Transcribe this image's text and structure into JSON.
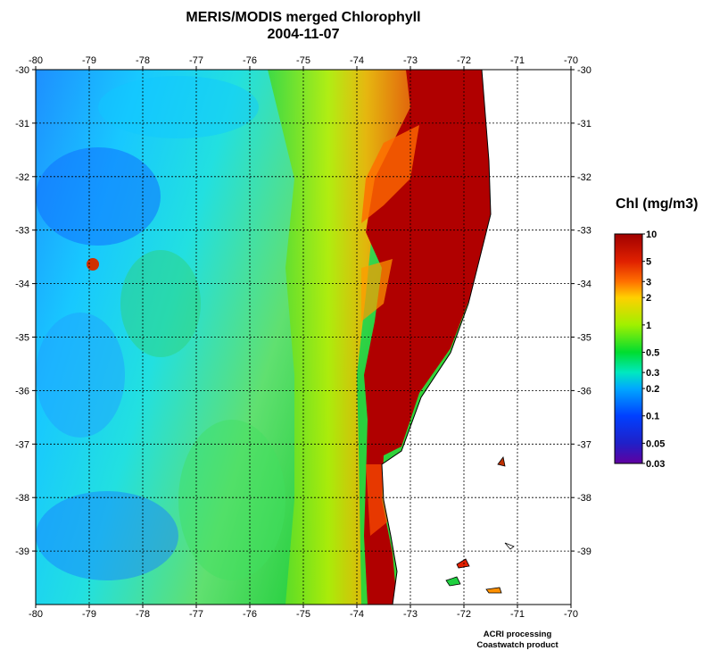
{
  "header": {
    "title": "MERIS/MODIS merged Chlorophyll",
    "date": "2004-11-07"
  },
  "map": {
    "lon_ticks": [
      "-80",
      "-79",
      "-78",
      "-77",
      "-76",
      "-75",
      "-74",
      "-73",
      "-72",
      "-71",
      "-70"
    ],
    "lat_ticks": [
      "-30",
      "-31",
      "-32",
      "-33",
      "-34",
      "-35",
      "-36",
      "-37",
      "-38",
      "-39"
    ],
    "lon_range": [
      -80,
      -70
    ],
    "lat_range": [
      -40,
      -30
    ],
    "gridlines": "dashed"
  },
  "colorbar": {
    "title": "Chl (mg/m3)",
    "scale": "log",
    "range": [
      0.03,
      10
    ],
    "tick_values": [
      10,
      5,
      3,
      2,
      1,
      0.5,
      0.3,
      0.2,
      0.1,
      0.05,
      0.03
    ],
    "tick_labels": [
      "10",
      "5",
      "3",
      "2",
      "1",
      "0.5",
      "0.3",
      "0.2",
      "0.1",
      "0.05",
      "0.03"
    ],
    "colors": [
      "#a00000",
      "#e02000",
      "#ff7000",
      "#ffd000",
      "#a0f000",
      "#00dd30",
      "#00e8c0",
      "#00a8ff",
      "#0040ff",
      "#2020c8",
      "#6000a0"
    ]
  },
  "footer": {
    "line1": "ACRI processing",
    "line2": "Coastwatch product"
  },
  "colors": {
    "high_chl": "#b00000",
    "land": "#ffffff",
    "coast": "#000000"
  }
}
